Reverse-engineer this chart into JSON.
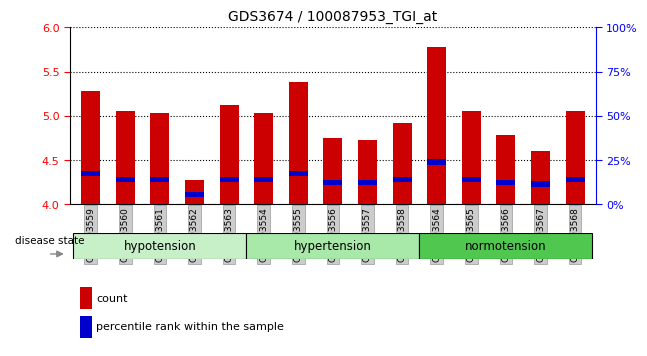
{
  "title": "GDS3674 / 100087953_TGI_at",
  "samples": [
    "GSM493559",
    "GSM493560",
    "GSM493561",
    "GSM493562",
    "GSM493563",
    "GSM493554",
    "GSM493555",
    "GSM493556",
    "GSM493557",
    "GSM493558",
    "GSM493564",
    "GSM493565",
    "GSM493566",
    "GSM493567",
    "GSM493568"
  ],
  "count_values": [
    5.28,
    5.05,
    5.03,
    4.28,
    5.12,
    5.03,
    5.38,
    4.75,
    4.73,
    4.92,
    5.78,
    5.05,
    4.78,
    4.6,
    5.05
  ],
  "percentile_values": [
    4.32,
    4.25,
    4.25,
    4.08,
    4.25,
    4.25,
    4.32,
    4.22,
    4.22,
    4.25,
    4.45,
    4.25,
    4.22,
    4.2,
    4.25
  ],
  "groups": [
    {
      "label": "hypotension",
      "start": 0,
      "end": 5,
      "color": "#c8f0c8"
    },
    {
      "label": "hypertension",
      "start": 5,
      "end": 10,
      "color": "#a8e8a8"
    },
    {
      "label": "normotension",
      "start": 10,
      "end": 15,
      "color": "#50c850"
    }
  ],
  "ylim_left": [
    4.0,
    6.0
  ],
  "ylim_right": [
    0,
    100
  ],
  "yticks_left": [
    4.0,
    4.5,
    5.0,
    5.5,
    6.0
  ],
  "yticks_right": [
    0,
    25,
    50,
    75,
    100
  ],
  "bar_color": "#cc0000",
  "percentile_color": "#0000cc",
  "bg_color": "#ffffff",
  "bar_width": 0.55
}
